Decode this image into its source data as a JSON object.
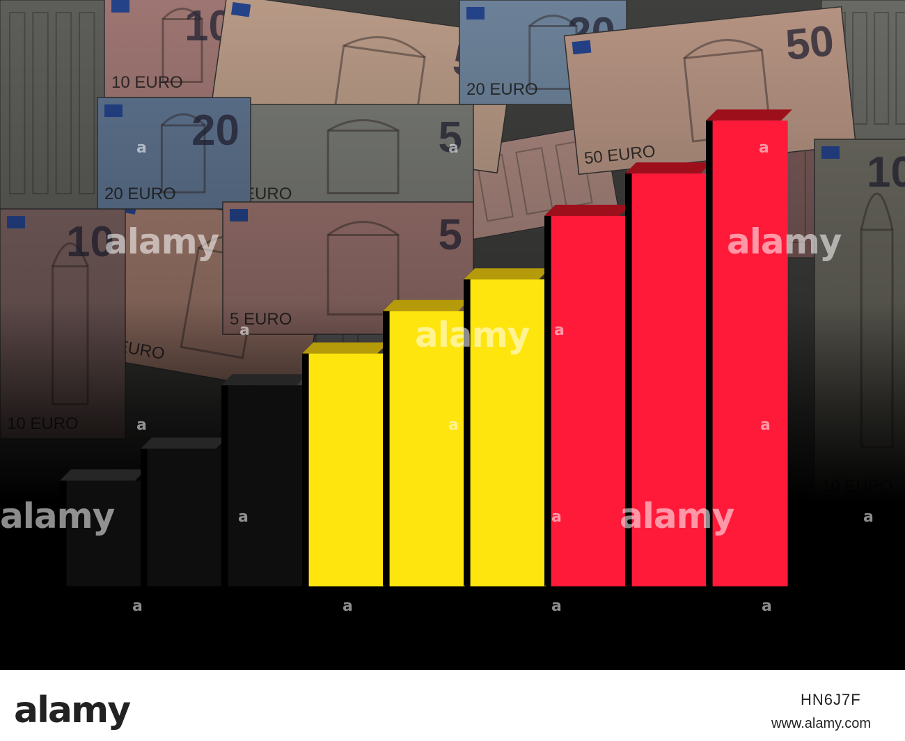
{
  "banknotes": [
    {
      "value": "10",
      "word": "EURO"
    },
    {
      "value": "50",
      "word": "EURO"
    },
    {
      "value": "20",
      "word": "EURO"
    },
    {
      "value": "5",
      "word": "EURO"
    },
    {
      "value": "50",
      "word": "EURO"
    },
    {
      "value": "10",
      "word": "EURO"
    },
    {
      "value": "50",
      "word": "EURO"
    },
    {
      "value": "20",
      "word": "EURO"
    },
    {
      "value": "5",
      "word": "EURO"
    },
    {
      "value": "10",
      "word": "EURO"
    }
  ],
  "flag_colors": {
    "black": "#111111",
    "yellow": "#FFE50E",
    "red": "#FF1A3A"
  },
  "bars": [
    {
      "color": "black",
      "value": 1.0
    },
    {
      "color": "black",
      "value": 1.3
    },
    {
      "color": "black",
      "value": 1.9
    },
    {
      "color": "yellow",
      "value": 2.2
    },
    {
      "color": "yellow",
      "value": 2.6
    },
    {
      "color": "yellow",
      "value": 2.9
    },
    {
      "color": "red",
      "value": 3.5
    },
    {
      "color": "red",
      "value": 3.9
    },
    {
      "color": "red",
      "value": 4.4
    }
  ],
  "watermarks": {
    "brand": "alamy",
    "mark": "a"
  },
  "footer": {
    "logo": "alamy",
    "image_id": "HN6J7F",
    "url": "www.alamy.com"
  }
}
